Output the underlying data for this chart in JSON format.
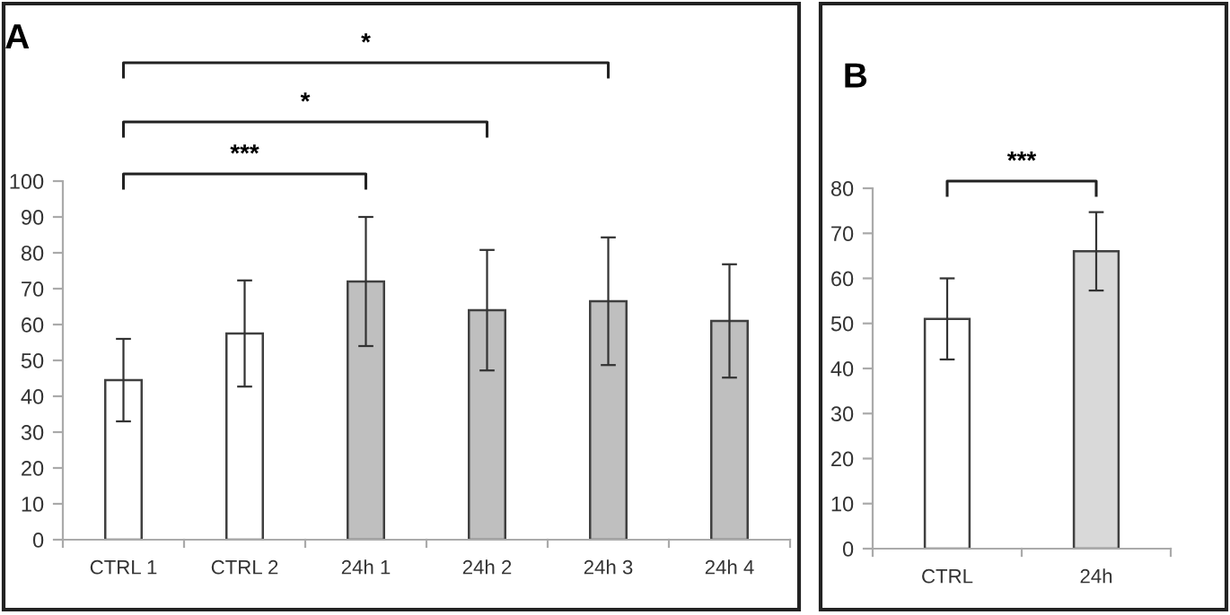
{
  "chart_data": [
    {
      "type": "bar",
      "title": "A",
      "categories": [
        "CTRL 1",
        "CTRL 2",
        "24h 1",
        "24h 2",
        "24h 3",
        "24h 4"
      ],
      "values": [
        44.5,
        57.5,
        72,
        64,
        66.5,
        61
      ],
      "errors": [
        11.5,
        14.8,
        18,
        16.8,
        17.8,
        15.8
      ],
      "colors": [
        "#ffffff",
        "#ffffff",
        "#bfbfbf",
        "#bfbfbf",
        "#bfbfbf",
        "#bfbfbf"
      ],
      "ylim": [
        0,
        100
      ],
      "yticks": [
        0,
        10,
        20,
        30,
        40,
        50,
        60,
        70,
        80,
        90,
        100
      ],
      "grid": false,
      "legend": false,
      "annotations": [
        "***",
        "*",
        "*"
      ]
    },
    {
      "type": "bar",
      "title": "B",
      "categories": [
        "CTRL",
        "24h"
      ],
      "values": [
        51,
        66
      ],
      "errors": [
        9,
        8.7
      ],
      "colors": [
        "#ffffff",
        "#d9d9d9"
      ],
      "ylim": [
        0,
        80
      ],
      "yticks": [
        0,
        10,
        20,
        30,
        40,
        50,
        60,
        70,
        80
      ],
      "grid": false,
      "legend": false,
      "annotations": [
        "***"
      ]
    }
  ]
}
